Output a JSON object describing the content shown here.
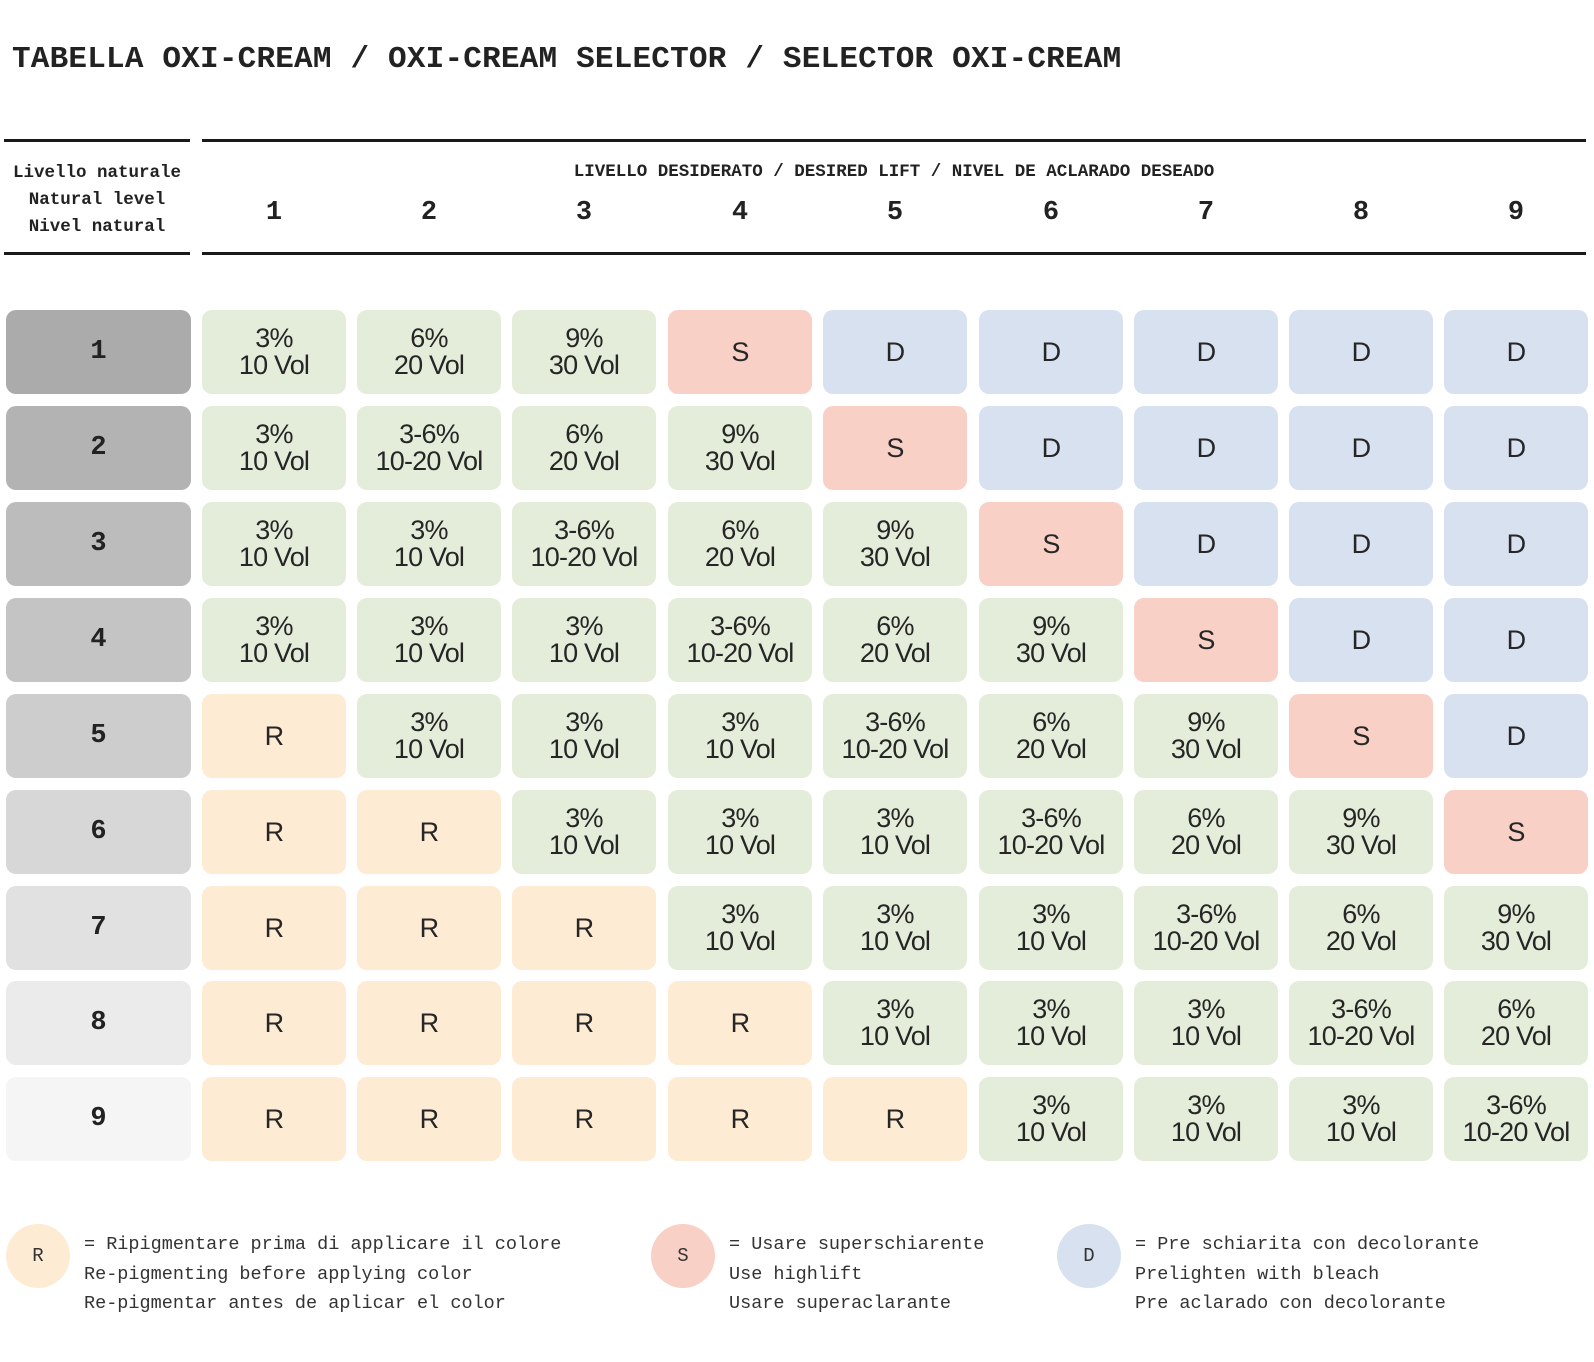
{
  "title": "TABELLA OXI-CREAM / OXI-CREAM SELECTOR / SELECTOR OXI-CREAM",
  "natural_level_labels": [
    "Livello naturale",
    "Natural level",
    "Nivel natural"
  ],
  "desired_lift_label": "LIVELLO DESIDERATO / DESIRED LIFT / NIVEL DE ACLARADO DESEADO",
  "desired_levels": [
    "1",
    "2",
    "3",
    "4",
    "5",
    "6",
    "7",
    "8",
    "9"
  ],
  "colors": {
    "oxi": "#e3edd9",
    "superlift": "#f8d0c6",
    "bleach": "#d8e1ef",
    "repigment": "#fdebd3"
  },
  "rows": [
    {
      "level": "1",
      "row_color": "#ababab",
      "cells": [
        {
          "type": "G",
          "lines": [
            "3%",
            "10 Vol"
          ]
        },
        {
          "type": "G",
          "lines": [
            "6%",
            "20 Vol"
          ]
        },
        {
          "type": "G",
          "lines": [
            "9%",
            "30 Vol"
          ]
        },
        {
          "type": "S",
          "lines": [
            "S"
          ]
        },
        {
          "type": "D",
          "lines": [
            "D"
          ]
        },
        {
          "type": "D",
          "lines": [
            "D"
          ]
        },
        {
          "type": "D",
          "lines": [
            "D"
          ]
        },
        {
          "type": "D",
          "lines": [
            "D"
          ]
        },
        {
          "type": "D",
          "lines": [
            "D"
          ]
        }
      ]
    },
    {
      "level": "2",
      "row_color": "#b3b3b3",
      "cells": [
        {
          "type": "G",
          "lines": [
            "3%",
            "10 Vol"
          ]
        },
        {
          "type": "G",
          "lines": [
            "3-6%",
            "10-20 Vol"
          ]
        },
        {
          "type": "G",
          "lines": [
            "6%",
            "20 Vol"
          ]
        },
        {
          "type": "G",
          "lines": [
            "9%",
            "30 Vol"
          ]
        },
        {
          "type": "S",
          "lines": [
            "S"
          ]
        },
        {
          "type": "D",
          "lines": [
            "D"
          ]
        },
        {
          "type": "D",
          "lines": [
            "D"
          ]
        },
        {
          "type": "D",
          "lines": [
            "D"
          ]
        },
        {
          "type": "D",
          "lines": [
            "D"
          ]
        }
      ]
    },
    {
      "level": "3",
      "row_color": "#bcbcbc",
      "cells": [
        {
          "type": "G",
          "lines": [
            "3%",
            "10 Vol"
          ]
        },
        {
          "type": "G",
          "lines": [
            "3%",
            "10 Vol"
          ]
        },
        {
          "type": "G",
          "lines": [
            "3-6%",
            "10-20 Vol"
          ]
        },
        {
          "type": "G",
          "lines": [
            "6%",
            "20 Vol"
          ]
        },
        {
          "type": "G",
          "lines": [
            "9%",
            "30 Vol"
          ]
        },
        {
          "type": "S",
          "lines": [
            "S"
          ]
        },
        {
          "type": "D",
          "lines": [
            "D"
          ]
        },
        {
          "type": "D",
          "lines": [
            "D"
          ]
        },
        {
          "type": "D",
          "lines": [
            "D"
          ]
        }
      ]
    },
    {
      "level": "4",
      "row_color": "#c4c4c4",
      "cells": [
        {
          "type": "G",
          "lines": [
            "3%",
            "10 Vol"
          ]
        },
        {
          "type": "G",
          "lines": [
            "3%",
            "10 Vol"
          ]
        },
        {
          "type": "G",
          "lines": [
            "3%",
            "10 Vol"
          ]
        },
        {
          "type": "G",
          "lines": [
            "3-6%",
            "10-20 Vol"
          ]
        },
        {
          "type": "G",
          "lines": [
            "6%",
            "20 Vol"
          ]
        },
        {
          "type": "G",
          "lines": [
            "9%",
            "30 Vol"
          ]
        },
        {
          "type": "S",
          "lines": [
            "S"
          ]
        },
        {
          "type": "D",
          "lines": [
            "D"
          ]
        },
        {
          "type": "D",
          "lines": [
            "D"
          ]
        }
      ]
    },
    {
      "level": "5",
      "row_color": "#cdcdcd",
      "cells": [
        {
          "type": "R",
          "lines": [
            "R"
          ]
        },
        {
          "type": "G",
          "lines": [
            "3%",
            "10 Vol"
          ]
        },
        {
          "type": "G",
          "lines": [
            "3%",
            "10 Vol"
          ]
        },
        {
          "type": "G",
          "lines": [
            "3%",
            "10 Vol"
          ]
        },
        {
          "type": "G",
          "lines": [
            "3-6%",
            "10-20 Vol"
          ]
        },
        {
          "type": "G",
          "lines": [
            "6%",
            "20 Vol"
          ]
        },
        {
          "type": "G",
          "lines": [
            "9%",
            "30 Vol"
          ]
        },
        {
          "type": "S",
          "lines": [
            "S"
          ]
        },
        {
          "type": "D",
          "lines": [
            "D"
          ]
        }
      ]
    },
    {
      "level": "6",
      "row_color": "#d7d7d7",
      "cells": [
        {
          "type": "R",
          "lines": [
            "R"
          ]
        },
        {
          "type": "R",
          "lines": [
            "R"
          ]
        },
        {
          "type": "G",
          "lines": [
            "3%",
            "10 Vol"
          ]
        },
        {
          "type": "G",
          "lines": [
            "3%",
            "10 Vol"
          ]
        },
        {
          "type": "G",
          "lines": [
            "3%",
            "10 Vol"
          ]
        },
        {
          "type": "G",
          "lines": [
            "3-6%",
            "10-20 Vol"
          ]
        },
        {
          "type": "G",
          "lines": [
            "6%",
            "20 Vol"
          ]
        },
        {
          "type": "G",
          "lines": [
            "9%",
            "30 Vol"
          ]
        },
        {
          "type": "S",
          "lines": [
            "S"
          ]
        }
      ]
    },
    {
      "level": "7",
      "row_color": "#e1e1e1",
      "cells": [
        {
          "type": "R",
          "lines": [
            "R"
          ]
        },
        {
          "type": "R",
          "lines": [
            "R"
          ]
        },
        {
          "type": "R",
          "lines": [
            "R"
          ]
        },
        {
          "type": "G",
          "lines": [
            "3%",
            "10 Vol"
          ]
        },
        {
          "type": "G",
          "lines": [
            "3%",
            "10 Vol"
          ]
        },
        {
          "type": "G",
          "lines": [
            "3%",
            "10 Vol"
          ]
        },
        {
          "type": "G",
          "lines": [
            "3-6%",
            "10-20 Vol"
          ]
        },
        {
          "type": "G",
          "lines": [
            "6%",
            "20 Vol"
          ]
        },
        {
          "type": "G",
          "lines": [
            "9%",
            "30 Vol"
          ]
        }
      ]
    },
    {
      "level": "8",
      "row_color": "#ebebeb",
      "cells": [
        {
          "type": "R",
          "lines": [
            "R"
          ]
        },
        {
          "type": "R",
          "lines": [
            "R"
          ]
        },
        {
          "type": "R",
          "lines": [
            "R"
          ]
        },
        {
          "type": "R",
          "lines": [
            "R"
          ]
        },
        {
          "type": "G",
          "lines": [
            "3%",
            "10 Vol"
          ]
        },
        {
          "type": "G",
          "lines": [
            "3%",
            "10 Vol"
          ]
        },
        {
          "type": "G",
          "lines": [
            "3%",
            "10 Vol"
          ]
        },
        {
          "type": "G",
          "lines": [
            "3-6%",
            "10-20 Vol"
          ]
        },
        {
          "type": "G",
          "lines": [
            "6%",
            "20 Vol"
          ]
        }
      ]
    },
    {
      "level": "9",
      "row_color": "#f5f5f5",
      "cells": [
        {
          "type": "R",
          "lines": [
            "R"
          ]
        },
        {
          "type": "R",
          "lines": [
            "R"
          ]
        },
        {
          "type": "R",
          "lines": [
            "R"
          ]
        },
        {
          "type": "R",
          "lines": [
            "R"
          ]
        },
        {
          "type": "R",
          "lines": [
            "R"
          ]
        },
        {
          "type": "G",
          "lines": [
            "3%",
            "10 Vol"
          ]
        },
        {
          "type": "G",
          "lines": [
            "3%",
            "10 Vol"
          ]
        },
        {
          "type": "G",
          "lines": [
            "3%",
            "10 Vol"
          ]
        },
        {
          "type": "G",
          "lines": [
            "3-6%",
            "10-20 Vol"
          ]
        }
      ]
    }
  ],
  "legend": [
    {
      "symbol": "R",
      "type": "R",
      "lines": [
        "= Ripigmentare prima di applicare il colore",
        "Re-pigmenting before applying color",
        "Re-pigmentar antes de aplicar el color"
      ]
    },
    {
      "symbol": "S",
      "type": "S",
      "lines": [
        "= Usare superschiarente",
        "Use highlift",
        "Usare superaclarante"
      ]
    },
    {
      "symbol": "D",
      "type": "D",
      "lines": [
        "= Pre schiarita con decolorante",
        "Prelighten with bleach",
        "Pre aclarado con decolorante"
      ]
    }
  ]
}
